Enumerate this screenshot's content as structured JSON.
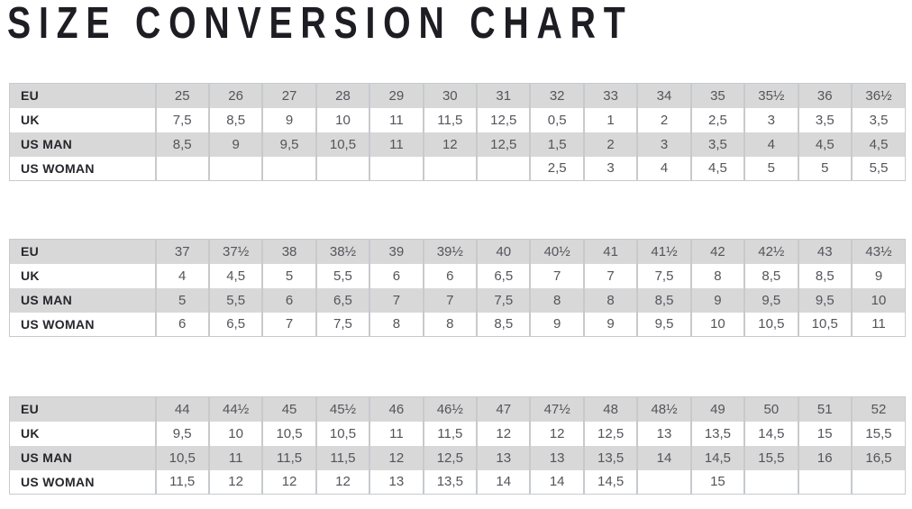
{
  "title": "SIZE CONVERSION CHART",
  "colors": {
    "shaded_row": "#d8d8d8",
    "plain_row": "#ffffff",
    "grid_line": "#c7cacd",
    "label_text": "#26262c",
    "value_text": "#54545b",
    "title_text": "#1d1d23"
  },
  "row_labels": [
    "EU",
    "UK",
    "US MAN",
    "US WOMAN"
  ],
  "tables": [
    {
      "name": "size-table-eu-25-to-36half",
      "rows": [
        {
          "label": "EU",
          "values": [
            "25",
            "26",
            "27",
            "28",
            "29",
            "30",
            "31",
            "32",
            "33",
            "34",
            "35",
            "35½",
            "36",
            "36½"
          ]
        },
        {
          "label": "UK",
          "values": [
            "7,5",
            "8,5",
            "9",
            "10",
            "11",
            "11,5",
            "12,5",
            "0,5",
            "1",
            "2",
            "2,5",
            "3",
            "3,5",
            "3,5"
          ]
        },
        {
          "label": "US MAN",
          "values": [
            "8,5",
            "9",
            "9,5",
            "10,5",
            "11",
            "12",
            "12,5",
            "1,5",
            "2",
            "3",
            "3,5",
            "4",
            "4,5",
            "4,5"
          ]
        },
        {
          "label": "US WOMAN",
          "values": [
            "",
            "",
            "",
            "",
            "",
            "",
            "",
            "2,5",
            "3",
            "4",
            "4,5",
            "5",
            "5",
            "5,5"
          ]
        }
      ]
    },
    {
      "name": "size-table-eu-37-to-43half",
      "rows": [
        {
          "label": "EU",
          "values": [
            "37",
            "37½",
            "38",
            "38½",
            "39",
            "39½",
            "40",
            "40½",
            "41",
            "41½",
            "42",
            "42½",
            "43",
            "43½"
          ]
        },
        {
          "label": "UK",
          "values": [
            "4",
            "4,5",
            "5",
            "5,5",
            "6",
            "6",
            "6,5",
            "7",
            "7",
            "7,5",
            "8",
            "8,5",
            "8,5",
            "9"
          ]
        },
        {
          "label": "US MAN",
          "values": [
            "5",
            "5,5",
            "6",
            "6,5",
            "7",
            "7",
            "7,5",
            "8",
            "8",
            "8,5",
            "9",
            "9,5",
            "9,5",
            "10"
          ]
        },
        {
          "label": "US WOMAN",
          "values": [
            "6",
            "6,5",
            "7",
            "7,5",
            "8",
            "8",
            "8,5",
            "9",
            "9",
            "9,5",
            "10",
            "10,5",
            "10,5",
            "11"
          ]
        }
      ]
    },
    {
      "name": "size-table-eu-44-to-52",
      "rows": [
        {
          "label": "EU",
          "values": [
            "44",
            "44½",
            "45",
            "45½",
            "46",
            "46½",
            "47",
            "47½",
            "48",
            "48½",
            "49",
            "50",
            "51",
            "52"
          ]
        },
        {
          "label": "UK",
          "values": [
            "9,5",
            "10",
            "10,5",
            "10,5",
            "11",
            "11,5",
            "12",
            "12",
            "12,5",
            "13",
            "13,5",
            "14,5",
            "15",
            "15,5"
          ]
        },
        {
          "label": "US MAN",
          "values": [
            "10,5",
            "11",
            "11,5",
            "11,5",
            "12",
            "12,5",
            "13",
            "13",
            "13,5",
            "14",
            "14,5",
            "15,5",
            "16",
            "16,5"
          ]
        },
        {
          "label": "US WOMAN",
          "values": [
            "11,5",
            "12",
            "12",
            "12",
            "13",
            "13,5",
            "14",
            "14",
            "14,5",
            "",
            "15",
            "",
            "",
            ""
          ]
        }
      ]
    }
  ]
}
